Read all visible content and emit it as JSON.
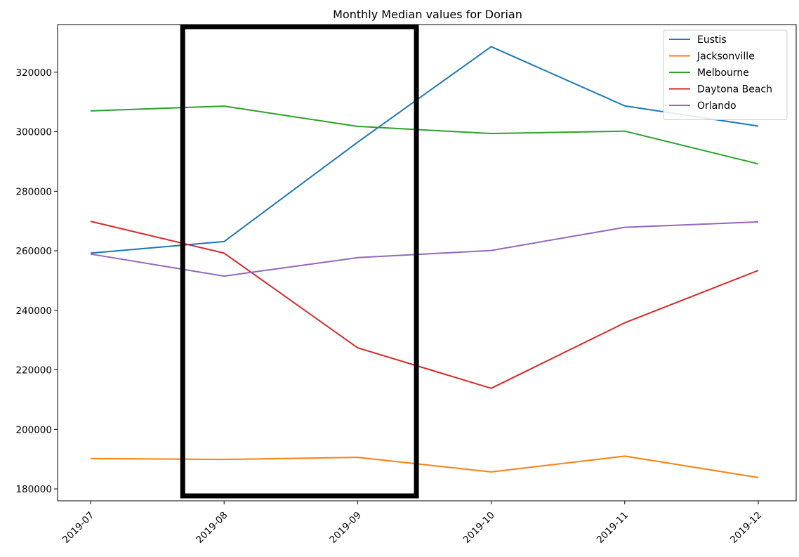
{
  "chart_data": {
    "type": "line",
    "title": "Monthly Median values for Dorian",
    "xlabel": "",
    "ylabel": "",
    "categories": [
      "2019-07",
      "2019-08",
      "2019-09",
      "2019-10",
      "2019-11",
      "2019-12"
    ],
    "ylim": [
      176000,
      336000
    ],
    "yticks": [
      180000,
      200000,
      220000,
      240000,
      260000,
      280000,
      300000,
      320000
    ],
    "ytick_labels": [
      "180000",
      "200000",
      "220000",
      "240000",
      "260000",
      "280000",
      "300000",
      "320000"
    ],
    "grid": false,
    "legend_position": "top-right",
    "series": [
      {
        "name": "Eustis",
        "color": "#1f77b4",
        "values": [
          259200,
          263100,
          296500,
          328600,
          308700,
          301900
        ]
      },
      {
        "name": "Jacksonville",
        "color": "#ff7f0e",
        "values": [
          190200,
          189900,
          190600,
          185700,
          191000,
          183800
        ]
      },
      {
        "name": "Melbourne",
        "color": "#2ca02c",
        "values": [
          307000,
          308600,
          301800,
          299400,
          300200,
          289200
        ]
      },
      {
        "name": "Daytona Beach",
        "color": "#d62728",
        "values": [
          269900,
          259200,
          227400,
          213800,
          235800,
          253400
        ]
      },
      {
        "name": "Orlando",
        "color": "#9467bd",
        "values": [
          258900,
          251500,
          257700,
          260100,
          267900,
          269700
        ]
      }
    ],
    "annotations": [
      {
        "type": "rectangle",
        "shape": "highlight-box",
        "color": "#000000",
        "x_range": [
          "2019-08",
          "2019-09"
        ]
      }
    ]
  }
}
